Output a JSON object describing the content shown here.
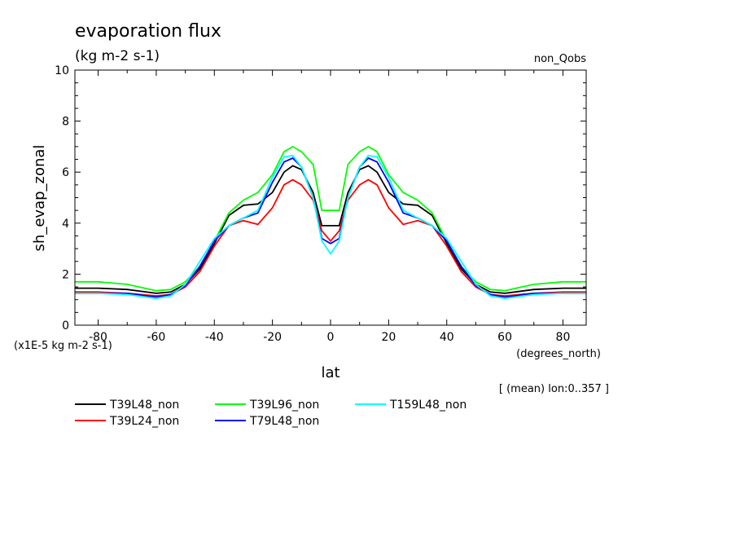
{
  "chart_data": {
    "type": "line",
    "title": "evaporation flux",
    "units_label": "(kg m-2 s-1)",
    "corner_label": "non_Qobs",
    "ylabel": "sh_evap_zonal",
    "y_scale_note": "(x1E-5 kg m-2 s-1)",
    "xlabel": "lat",
    "x_units": "(degrees_north)",
    "footnote": "[ (mean) lon:0..357 ]",
    "xlim": [
      -88,
      88
    ],
    "ylim": [
      0,
      10
    ],
    "x_ticks": [
      -80,
      -60,
      -40,
      -20,
      0,
      20,
      40,
      60,
      80
    ],
    "y_ticks": [
      0,
      2,
      4,
      6,
      8,
      10
    ],
    "grid": false,
    "legend_position": "bottom-left",
    "series": [
      {
        "name": "T39L48_non",
        "color": "#000000",
        "x": [
          -88,
          -80,
          -70,
          -60,
          -55,
          -50,
          -45,
          -40,
          -35,
          -30,
          -25,
          -20,
          -16,
          -13,
          -10,
          -6,
          -3,
          0,
          3,
          6,
          10,
          13,
          16,
          20,
          25,
          30,
          35,
          40,
          45,
          50,
          55,
          60,
          70,
          80,
          88
        ],
        "values": [
          1.45,
          1.45,
          1.4,
          1.25,
          1.3,
          1.6,
          2.2,
          3.2,
          4.3,
          4.7,
          4.75,
          5.2,
          6.0,
          6.25,
          6.1,
          5.2,
          3.9,
          3.9,
          3.9,
          5.2,
          6.1,
          6.25,
          6.0,
          5.2,
          4.75,
          4.7,
          4.3,
          3.2,
          2.2,
          1.6,
          1.3,
          1.25,
          1.4,
          1.45,
          1.45
        ]
      },
      {
        "name": "T39L24_non",
        "color": "#ff0000",
        "x": [
          -88,
          -80,
          -70,
          -60,
          -55,
          -50,
          -45,
          -40,
          -35,
          -30,
          -25,
          -20,
          -16,
          -13,
          -10,
          -6,
          -3,
          0,
          3,
          6,
          10,
          13,
          16,
          20,
          25,
          30,
          35,
          40,
          45,
          50,
          55,
          60,
          70,
          80,
          88
        ],
        "values": [
          1.3,
          1.3,
          1.25,
          1.15,
          1.2,
          1.5,
          2.1,
          3.1,
          3.9,
          4.1,
          3.95,
          4.6,
          5.5,
          5.7,
          5.5,
          4.9,
          3.7,
          3.3,
          3.7,
          4.9,
          5.5,
          5.7,
          5.5,
          4.6,
          3.95,
          4.1,
          3.9,
          3.1,
          2.1,
          1.5,
          1.2,
          1.15,
          1.25,
          1.3,
          1.3
        ]
      },
      {
        "name": "T39L96_non",
        "color": "#00ff00",
        "x": [
          -88,
          -80,
          -70,
          -60,
          -55,
          -50,
          -45,
          -40,
          -35,
          -30,
          -25,
          -20,
          -16,
          -13,
          -10,
          -6,
          -3,
          0,
          3,
          6,
          10,
          13,
          16,
          20,
          25,
          30,
          35,
          40,
          45,
          50,
          55,
          60,
          70,
          80,
          88
        ],
        "values": [
          1.7,
          1.7,
          1.6,
          1.35,
          1.4,
          1.7,
          2.3,
          3.3,
          4.4,
          4.9,
          5.2,
          5.9,
          6.8,
          7.0,
          6.8,
          6.3,
          4.5,
          4.5,
          4.5,
          6.3,
          6.8,
          7.0,
          6.8,
          5.9,
          5.2,
          4.9,
          4.4,
          3.3,
          2.3,
          1.7,
          1.4,
          1.35,
          1.6,
          1.7,
          1.7
        ]
      },
      {
        "name": "T79L48_non",
        "color": "#0000ff",
        "x": [
          -88,
          -80,
          -70,
          -60,
          -55,
          -50,
          -45,
          -40,
          -35,
          -30,
          -25,
          -20,
          -16,
          -13,
          -10,
          -6,
          -3,
          0,
          3,
          6,
          10,
          13,
          16,
          20,
          25,
          30,
          35,
          40,
          45,
          50,
          55,
          60,
          70,
          80,
          88
        ],
        "values": [
          1.25,
          1.25,
          1.25,
          1.1,
          1.2,
          1.55,
          2.3,
          3.3,
          3.9,
          4.2,
          4.4,
          5.6,
          6.4,
          6.55,
          6.2,
          5.0,
          3.4,
          3.2,
          3.4,
          5.0,
          6.2,
          6.55,
          6.4,
          5.6,
          4.4,
          4.2,
          3.9,
          3.3,
          2.3,
          1.55,
          1.2,
          1.1,
          1.25,
          1.25,
          1.25
        ]
      },
      {
        "name": "T159L48_non",
        "color": "#00ffff",
        "x": [
          -88,
          -80,
          -70,
          -60,
          -55,
          -50,
          -45,
          -40,
          -35,
          -30,
          -25,
          -20,
          -16,
          -13,
          -10,
          -6,
          -3,
          0,
          3,
          6,
          10,
          13,
          16,
          20,
          25,
          30,
          35,
          40,
          45,
          50,
          55,
          60,
          70,
          80,
          88
        ],
        "values": [
          1.25,
          1.25,
          1.2,
          1.05,
          1.15,
          1.6,
          2.5,
          3.4,
          3.9,
          4.2,
          4.5,
          5.8,
          6.6,
          6.65,
          6.2,
          5.0,
          3.3,
          2.8,
          3.3,
          5.0,
          6.2,
          6.65,
          6.6,
          5.8,
          4.5,
          4.2,
          3.9,
          3.4,
          2.5,
          1.6,
          1.15,
          1.05,
          1.2,
          1.25,
          1.25
        ]
      }
    ]
  }
}
